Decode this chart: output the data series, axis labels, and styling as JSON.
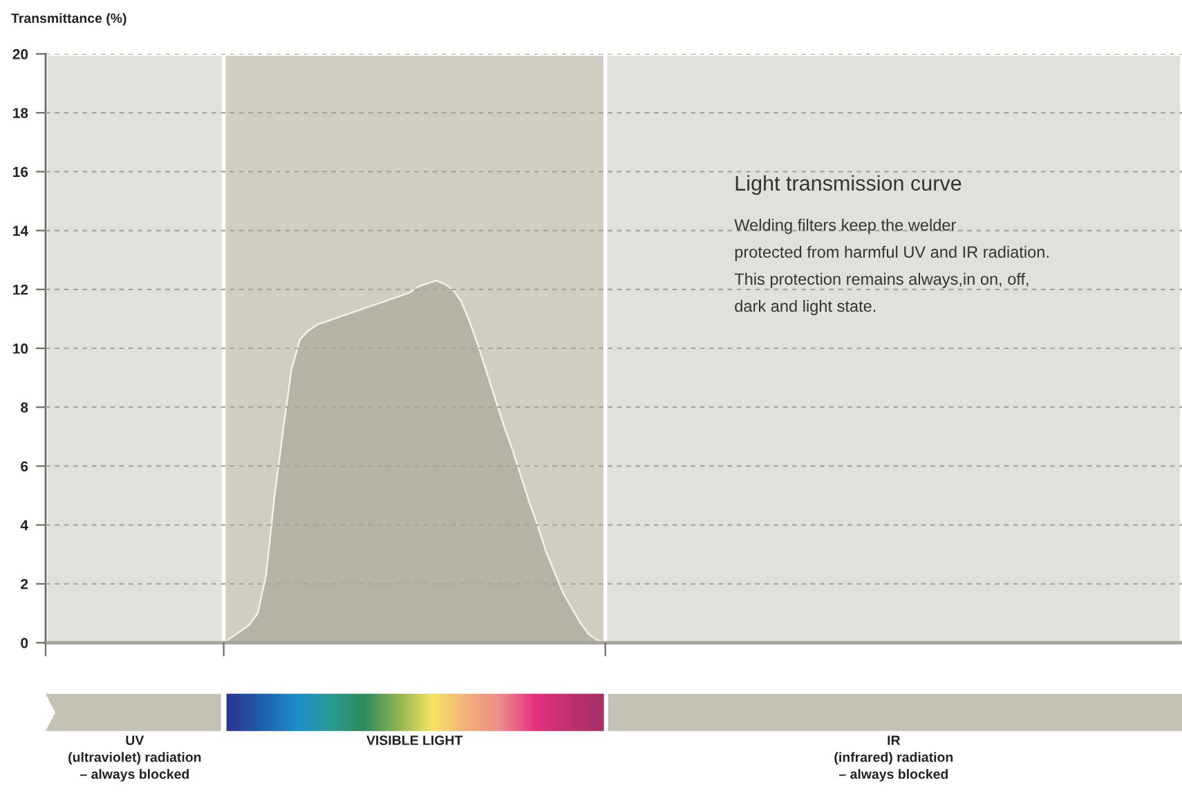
{
  "chart_data": {
    "type": "area",
    "title": "Light transmission curve",
    "ylabel": "Transmittance (%)",
    "annotations": [
      "Welding filters keep the welder\nprotected from harmful UV and IR radiation.\nThis protection remains always,in on, off,\ndark and light state.",
      "UV\n(ultraviolet) radiation\n– always blocked",
      "VISIBLE LIGHT",
      "IR\n(infrared) radiation\n– always blocked"
    ],
    "categories": [
      null,
      null,
      null,
      null,
      null,
      null,
      null,
      null,
      null,
      null,
      null,
      null,
      null,
      null,
      null,
      null,
      null,
      null,
      null,
      null,
      null,
      null,
      null,
      null,
      null,
      null,
      null,
      null,
      null,
      null,
      null,
      null,
      null,
      null,
      null,
      null,
      null,
      null,
      null,
      null,
      null,
      null,
      null,
      null,
      null,
      null,
      null,
      null,
      null,
      null,
      null,
      null,
      null,
      null,
      null,
      null,
      null,
      null,
      null,
      null,
      null,
      null,
      null,
      null,
      null,
      null,
      null,
      null,
      null,
      null,
      null,
      null,
      null,
      null,
      null,
      null,
      null,
      null,
      null,
      null,
      null,
      null,
      null,
      null,
      null,
      null,
      null,
      null,
      null,
      null,
      null,
      null,
      null,
      null,
      null,
      null,
      null,
      null,
      null,
      null,
      null,
      null,
      null,
      null,
      null,
      null,
      null,
      null,
      null,
      null,
      null,
      null,
      null,
      null,
      null,
      null,
      null,
      null,
      null,
      null,
      null,
      null,
      null,
      null,
      null,
      null,
      null,
      null,
      null,
      null,
      null,
      null,
      null,
      null,
      null
    ],
    "values": [
      null,
      null,
      null,
      null,
      null,
      null,
      null,
      null,
      null,
      null,
      null,
      null,
      null,
      null,
      null,
      null,
      null,
      null,
      null,
      null,
      null,
      0,
      0.2,
      0.4,
      0.6,
      1.0,
      2.3,
      5.0,
      7.2,
      9.3,
      10.3,
      10.6,
      10.8,
      10.9,
      11.0,
      11.1,
      11.2,
      11.3,
      11.4,
      11.5,
      11.6,
      11.7,
      11.8,
      11.9,
      12.1,
      12.2,
      12.3,
      12.2,
      12.0,
      11.6,
      10.9,
      10.1,
      9.2,
      8.3,
      7.4,
      6.6,
      5.7,
      4.8,
      4.0,
      3.1,
      2.4,
      1.7,
      1.2,
      0.7,
      0.3,
      0.1,
      0,
      null,
      null,
      null,
      null,
      null,
      null,
      null,
      null,
      null,
      null,
      null,
      null,
      null,
      null,
      null,
      null,
      null,
      null,
      null,
      null,
      null,
      null,
      null,
      null,
      null,
      null,
      null,
      null,
      null,
      null,
      null,
      null,
      null,
      null,
      null,
      null,
      null,
      null,
      null,
      null,
      null,
      null,
      null,
      null,
      null,
      null,
      null,
      null,
      null,
      null,
      null,
      null,
      null,
      null,
      null,
      null,
      null,
      null,
      null,
      null,
      null,
      null,
      null,
      null,
      null,
      null,
      null,
      null
    ],
    "color": "#b5b2a8",
    "ylim": [
      0,
      20
    ],
    "yticks": [
      0,
      2,
      4,
      6,
      8,
      10,
      12,
      14,
      16,
      18,
      20
    ],
    "grid": "y"
  }
}
